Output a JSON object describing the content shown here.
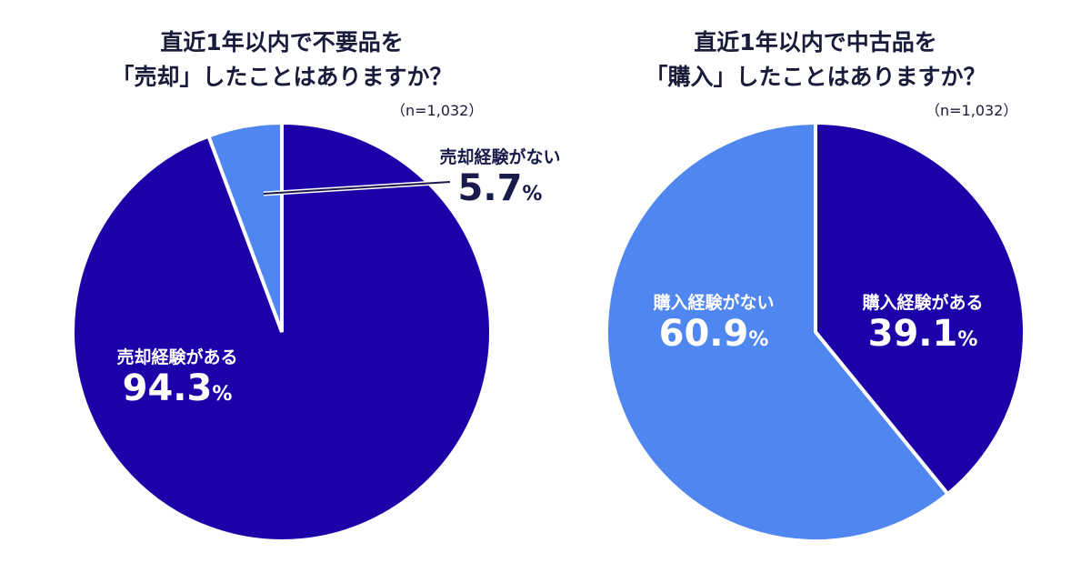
{
  "colors": {
    "dark": "#1c00a8",
    "light": "#4f86f0",
    "text": "#1a1a4a"
  },
  "chart_data": [
    {
      "type": "pie",
      "title_line1": "直近1年以内で不要品を",
      "title_line2": "「売却」したことはありますか？",
      "sample": "（n=1,032）",
      "slices": [
        {
          "label": "売却経験がある",
          "value": 94.3,
          "display": "94.3",
          "unit": "%",
          "color": "#1c00a8"
        },
        {
          "label": "売却経験がない",
          "value": 5.7,
          "display": "5.7",
          "unit": "%",
          "color": "#4f86f0"
        }
      ]
    },
    {
      "type": "pie",
      "title_line1": "直近1年以内で中古品を",
      "title_line2": "「購入」したことはありますか？",
      "sample": "（n=1,032）",
      "slices": [
        {
          "label": "購入経験がある",
          "value": 39.1,
          "display": "39.1",
          "unit": "%",
          "color": "#1c00a8"
        },
        {
          "label": "購入経験がない",
          "value": 60.9,
          "display": "60.9",
          "unit": "%",
          "color": "#4f86f0"
        }
      ]
    }
  ]
}
